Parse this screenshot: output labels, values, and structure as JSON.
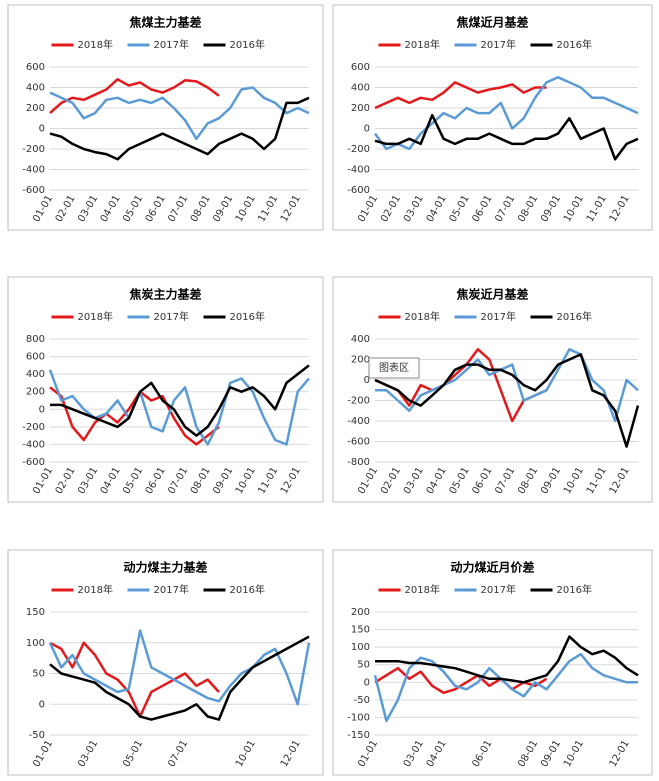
{
  "chart_data": [
    {
      "type": "line",
      "title": "焦煤主力基差",
      "legend": "top",
      "grid": true,
      "categories": [
        "01-01",
        null,
        "02-01",
        null,
        "03-01",
        null,
        "04-01",
        null,
        "05-01",
        null,
        "06-01",
        null,
        "07-01",
        null,
        "08-01",
        null,
        "09-01",
        null,
        "10-01",
        null,
        "11-01",
        null,
        "12-01",
        null
      ],
      "ylim": [
        -600,
        600
      ],
      "yticks": [
        -600,
        -400,
        -200,
        0,
        200,
        400,
        600
      ],
      "series": [
        {
          "name": "2018年",
          "color": "#e3191c",
          "values": [
            150,
            250,
            300,
            280,
            330,
            380,
            480,
            420,
            450,
            380,
            350,
            400,
            470,
            460,
            400,
            320,
            null,
            null,
            null,
            null,
            null,
            null,
            null,
            null
          ]
        },
        {
          "name": "2017年",
          "color": "#5b9bd5",
          "values": [
            350,
            300,
            250,
            100,
            150,
            280,
            300,
            250,
            280,
            250,
            300,
            200,
            80,
            -100,
            50,
            100,
            200,
            380,
            400,
            300,
            250,
            150,
            200,
            150
          ]
        },
        {
          "name": "2016年",
          "color": "#000000",
          "values": [
            -50,
            -80,
            -150,
            -200,
            -230,
            -250,
            -300,
            -200,
            -150,
            -100,
            -50,
            -100,
            -150,
            -200,
            -250,
            -150,
            -100,
            -50,
            -100,
            -200,
            -100,
            250,
            250,
            300
          ]
        }
      ]
    },
    {
      "type": "line",
      "title": "焦煤近月基差",
      "legend": "top",
      "grid": true,
      "categories": [
        "01-01",
        null,
        "02-01",
        null,
        "03-01",
        null,
        "04-01",
        null,
        "05-01",
        null,
        "06-01",
        null,
        "07-01",
        null,
        "08-01",
        null,
        "09-01",
        null,
        "10-01",
        null,
        "11-01",
        null,
        "12-01",
        null
      ],
      "ylim": [
        -600,
        600
      ],
      "yticks": [
        -600,
        -400,
        -200,
        0,
        200,
        400,
        600
      ],
      "series": [
        {
          "name": "2018年",
          "color": "#e3191c",
          "values": [
            200,
            250,
            300,
            250,
            300,
            280,
            350,
            450,
            400,
            350,
            380,
            400,
            430,
            350,
            400,
            400,
            null,
            null,
            null,
            null,
            null,
            null,
            null,
            null
          ]
        },
        {
          "name": "2017年",
          "color": "#5b9bd5",
          "values": [
            -50,
            -200,
            -150,
            -200,
            -50,
            50,
            150,
            100,
            200,
            150,
            150,
            250,
            0,
            100,
            300,
            450,
            500,
            450,
            400,
            300,
            300,
            250,
            200,
            150
          ]
        },
        {
          "name": "2016年",
          "color": "#000000",
          "values": [
            -120,
            -150,
            -150,
            -100,
            -150,
            130,
            -100,
            -150,
            -100,
            -100,
            -50,
            -100,
            -150,
            -150,
            -100,
            -100,
            -50,
            100,
            -100,
            -50,
            0,
            -300,
            -150,
            -100
          ]
        }
      ]
    },
    {
      "type": "line",
      "title": "焦炭主力基差",
      "legend": "top",
      "grid": true,
      "categories": [
        "01-01",
        null,
        "02-01",
        null,
        "03-01",
        null,
        "04-01",
        null,
        "05-01",
        null,
        "06-01",
        null,
        "07-01",
        null,
        "08-01",
        null,
        "09-01",
        null,
        "10-01",
        null,
        "11-01",
        null,
        "12-01",
        null
      ],
      "ylim": [
        -600,
        800
      ],
      "yticks": [
        -600,
        -400,
        -200,
        0,
        200,
        400,
        600,
        800
      ],
      "series": [
        {
          "name": "2018年",
          "color": "#e3191c",
          "values": [
            250,
            150,
            -200,
            -350,
            -150,
            -50,
            -150,
            0,
            200,
            100,
            150,
            -100,
            -300,
            -400,
            -300,
            -200,
            null,
            null,
            null,
            null,
            null,
            null,
            null,
            null
          ]
        },
        {
          "name": "2017年",
          "color": "#5b9bd5",
          "values": [
            450,
            100,
            150,
            0,
            -100,
            -50,
            100,
            -100,
            200,
            -200,
            -250,
            100,
            250,
            -200,
            -400,
            -150,
            300,
            350,
            200,
            -100,
            -350,
            -400,
            200,
            350
          ]
        },
        {
          "name": "2016年",
          "color": "#000000",
          "values": [
            50,
            50,
            0,
            -50,
            -100,
            -150,
            -200,
            -100,
            200,
            300,
            100,
            0,
            -200,
            -300,
            -200,
            0,
            250,
            200,
            250,
            150,
            0,
            300,
            400,
            500
          ]
        }
      ]
    },
    {
      "type": "line",
      "title": "焦炭近月基差",
      "legend": "top",
      "grid": true,
      "annotation": "图表区",
      "categories": [
        "01-01",
        null,
        "02-01",
        null,
        "03-01",
        null,
        "04-01",
        null,
        "05-01",
        null,
        "06-01",
        null,
        "07-01",
        null,
        "08-01",
        null,
        "09-01",
        null,
        "10-01",
        null,
        "11-01",
        null,
        "12-01",
        null
      ],
      "ylim": [
        -800,
        400
      ],
      "yticks": [
        -800,
        -600,
        -400,
        -200,
        0,
        200,
        400
      ],
      "series": [
        {
          "name": "2018年",
          "color": "#e3191c",
          "values": [
            0,
            -50,
            -100,
            -250,
            -50,
            -100,
            -50,
            50,
            150,
            300,
            200,
            -100,
            -400,
            -200,
            -150,
            -100,
            null,
            null,
            null,
            null,
            null,
            null,
            null,
            null
          ]
        },
        {
          "name": "2017年",
          "color": "#5b9bd5",
          "values": [
            -100,
            -100,
            -200,
            -300,
            -150,
            -100,
            -50,
            0,
            100,
            200,
            50,
            100,
            150,
            -200,
            -150,
            -100,
            100,
            300,
            250,
            0,
            -100,
            -400,
            0,
            -100
          ]
        },
        {
          "name": "2016年",
          "color": "#000000",
          "values": [
            0,
            -50,
            -100,
            -200,
            -250,
            -150,
            -50,
            100,
            150,
            150,
            100,
            100,
            50,
            -50,
            -100,
            0,
            150,
            200,
            250,
            -100,
            -150,
            -300,
            -650,
            -250
          ]
        }
      ]
    },
    {
      "type": "line",
      "title": "动力煤主力基差",
      "legend": "top",
      "grid": true,
      "categories": [
        "01-01",
        null,
        null,
        null,
        "03-01",
        null,
        null,
        null,
        "05-01",
        null,
        null,
        null,
        "07-01",
        null,
        null,
        null,
        null,
        null,
        "10-01",
        null,
        null,
        null,
        "12-01",
        null
      ],
      "ylim": [
        -50,
        150
      ],
      "yticks": [
        -50,
        0,
        50,
        100,
        150
      ],
      "series": [
        {
          "name": "2018年",
          "color": "#e3191c",
          "values": [
            100,
            90,
            60,
            100,
            80,
            50,
            40,
            20,
            -20,
            20,
            30,
            40,
            50,
            30,
            40,
            20,
            null,
            null,
            null,
            null,
            null,
            null,
            null,
            null
          ]
        },
        {
          "name": "2017年",
          "color": "#5b9bd5",
          "values": [
            100,
            60,
            80,
            50,
            40,
            30,
            20,
            25,
            120,
            60,
            50,
            40,
            30,
            20,
            10,
            5,
            30,
            50,
            60,
            80,
            90,
            50,
            0,
            100
          ]
        },
        {
          "name": "2016年",
          "color": "#000000",
          "values": [
            65,
            50,
            45,
            40,
            35,
            20,
            10,
            0,
            -20,
            -25,
            -20,
            -15,
            -10,
            0,
            -20,
            -25,
            20,
            40,
            60,
            70,
            80,
            90,
            100,
            110
          ]
        }
      ]
    },
    {
      "type": "line",
      "title": "动力煤近月价差",
      "legend": "top",
      "grid": true,
      "categories": [
        "01-01",
        null,
        null,
        null,
        "03-01",
        null,
        "04-01",
        null,
        null,
        null,
        "06-01",
        null,
        null,
        null,
        "08-01",
        null,
        "09-01",
        null,
        "10-01",
        null,
        null,
        null,
        "12-01",
        null
      ],
      "ylim": [
        -150,
        200
      ],
      "yticks": [
        -150,
        -100,
        -50,
        0,
        50,
        100,
        150,
        200
      ],
      "series": [
        {
          "name": "2018年",
          "color": "#e3191c",
          "values": [
            0,
            20,
            40,
            10,
            30,
            -10,
            -30,
            -20,
            0,
            20,
            -10,
            10,
            -20,
            0,
            -10,
            10,
            null,
            null,
            null,
            null,
            null,
            null,
            null,
            null
          ]
        },
        {
          "name": "2017年",
          "color": "#5b9bd5",
          "values": [
            20,
            -110,
            -50,
            40,
            70,
            60,
            30,
            -10,
            -20,
            0,
            40,
            10,
            -20,
            -40,
            0,
            -20,
            20,
            60,
            80,
            40,
            20,
            10,
            0,
            0
          ]
        },
        {
          "name": "2016年",
          "color": "#000000",
          "values": [
            60,
            60,
            60,
            55,
            55,
            50,
            45,
            40,
            30,
            20,
            10,
            10,
            5,
            0,
            10,
            20,
            60,
            130,
            100,
            80,
            90,
            70,
            40,
            20
          ]
        }
      ]
    }
  ]
}
